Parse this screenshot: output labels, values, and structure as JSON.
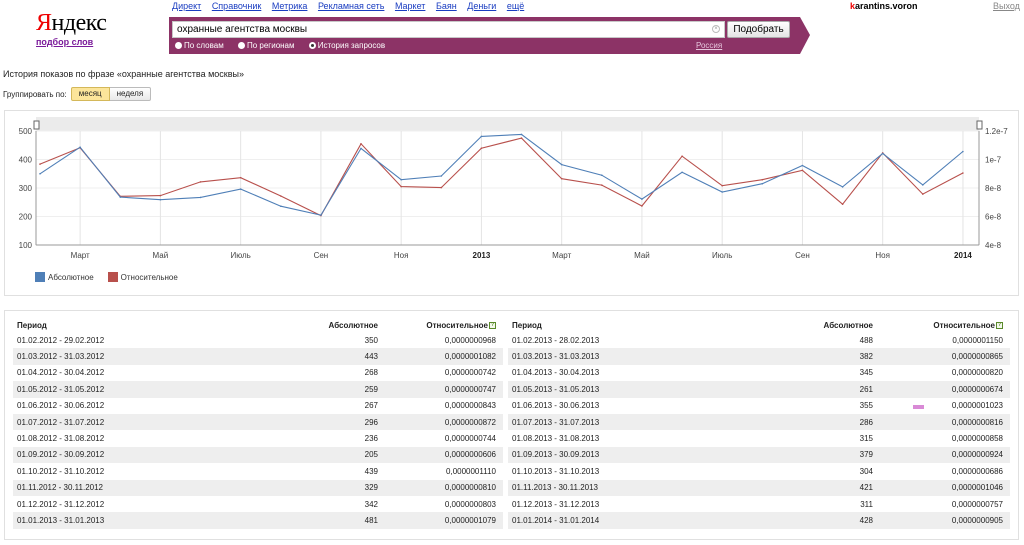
{
  "logo": {
    "text_first": "Я",
    "text_rest": "ндекс",
    "subtitle": "подбор слов"
  },
  "topnav": [
    "Директ",
    "Справочник",
    "Метрика",
    "Рекламная сеть",
    "Маркет",
    "Баян",
    "Деньги",
    "ещё"
  ],
  "user": {
    "first_letter": "k",
    "rest": "arantins.voron",
    "logout": "Выход"
  },
  "search": {
    "query": "охранные агентства москвы",
    "button": "Подобрать",
    "radios": [
      "По словам",
      "По регионам",
      "История запросов"
    ],
    "selected_radio": 2,
    "region": "Россия"
  },
  "page": {
    "title": "История показов по фразе «охранные агентства москвы»",
    "group_label": "Группировать по:",
    "group_month": "месяц",
    "group_week": "неделя"
  },
  "colors": {
    "absolute": "#4f7fb7",
    "relative": "#b8504c",
    "bar": "#8c3366"
  },
  "chart_data": {
    "type": "line",
    "x_tick_labels": [
      "Март",
      "Май",
      "Июль",
      "Сен",
      "Ноя",
      "2013",
      "Март",
      "Май",
      "Июль",
      "Сен",
      "Ноя",
      "2014"
    ],
    "y_left_ticks": [
      "500",
      "400",
      "300",
      "200",
      "100"
    ],
    "y_right_ticks": [
      "1.2e-7",
      "1e-7",
      "8e-8",
      "6e-8",
      "4e-8"
    ],
    "y_left_range": [
      100,
      500
    ],
    "y_right_range": [
      4e-08,
      1.2e-07
    ],
    "series": [
      {
        "name": "Абсолютное",
        "axis": "left",
        "values": [
          350,
          443,
          268,
          259,
          267,
          296,
          236,
          205,
          439,
          329,
          342,
          481,
          488,
          382,
          345,
          261,
          355,
          286,
          315,
          379,
          304,
          421,
          311,
          428
        ]
      },
      {
        "name": "Относительное",
        "axis": "right",
        "values": [
          9.68e-08,
          1.082e-07,
          7.42e-08,
          7.47e-08,
          8.43e-08,
          8.72e-08,
          7.44e-08,
          6.06e-08,
          1.11e-07,
          8.1e-08,
          8.03e-08,
          1.079e-07,
          1.15e-07,
          8.65e-08,
          8.2e-08,
          6.74e-08,
          1.023e-07,
          8.16e-08,
          8.58e-08,
          9.24e-08,
          6.86e-08,
          1.046e-07,
          7.57e-08,
          9.05e-08
        ]
      }
    ]
  },
  "table": {
    "headers": {
      "period": "Период",
      "absolute": "Абсолютное",
      "relative": "Относительное"
    },
    "left": [
      {
        "period": "01.02.2012 - 29.02.2012",
        "abs": "350",
        "rel": "0,0000000968"
      },
      {
        "period": "01.03.2012 - 31.03.2012",
        "abs": "443",
        "rel": "0,0000001082"
      },
      {
        "period": "01.04.2012 - 30.04.2012",
        "abs": "268",
        "rel": "0,0000000742"
      },
      {
        "period": "01.05.2012 - 31.05.2012",
        "abs": "259",
        "rel": "0,0000000747"
      },
      {
        "period": "01.06.2012 - 30.06.2012",
        "abs": "267",
        "rel": "0,0000000843"
      },
      {
        "period": "01.07.2012 - 31.07.2012",
        "abs": "296",
        "rel": "0,0000000872"
      },
      {
        "period": "01.08.2012 - 31.08.2012",
        "abs": "236",
        "rel": "0,0000000744"
      },
      {
        "period": "01.09.2012 - 30.09.2012",
        "abs": "205",
        "rel": "0,0000000606"
      },
      {
        "period": "01.10.2012 - 31.10.2012",
        "abs": "439",
        "rel": "0,0000001110"
      },
      {
        "period": "01.11.2012 - 30.11.2012",
        "abs": "329",
        "rel": "0,0000000810"
      },
      {
        "period": "01.12.2012 - 31.12.2012",
        "abs": "342",
        "rel": "0,0000000803"
      },
      {
        "period": "01.01.2013 - 31.01.2013",
        "abs": "481",
        "rel": "0,0000001079"
      }
    ],
    "right": [
      {
        "period": "01.02.2013 - 28.02.2013",
        "abs": "488",
        "rel": "0,0000001150"
      },
      {
        "period": "01.03.2013 - 31.03.2013",
        "abs": "382",
        "rel": "0,0000000865"
      },
      {
        "period": "01.04.2013 - 30.04.2013",
        "abs": "345",
        "rel": "0,0000000820"
      },
      {
        "period": "01.05.2013 - 31.05.2013",
        "abs": "261",
        "rel": "0,0000000674"
      },
      {
        "period": "01.06.2013 - 30.06.2013",
        "abs": "355",
        "rel": "0,0000001023",
        "highlight": true
      },
      {
        "period": "01.07.2013 - 31.07.2013",
        "abs": "286",
        "rel": "0,0000000816"
      },
      {
        "period": "01.08.2013 - 31.08.2013",
        "abs": "315",
        "rel": "0,0000000858"
      },
      {
        "period": "01.09.2013 - 30.09.2013",
        "abs": "379",
        "rel": "0,0000000924"
      },
      {
        "period": "01.10.2013 - 31.10.2013",
        "abs": "304",
        "rel": "0,0000000686"
      },
      {
        "period": "01.11.2013 - 30.11.2013",
        "abs": "421",
        "rel": "0,0000001046"
      },
      {
        "period": "01.12.2013 - 31.12.2013",
        "abs": "311",
        "rel": "0,0000000757"
      },
      {
        "period": "01.01.2014 - 31.01.2014",
        "abs": "428",
        "rel": "0,0000000905"
      }
    ]
  }
}
